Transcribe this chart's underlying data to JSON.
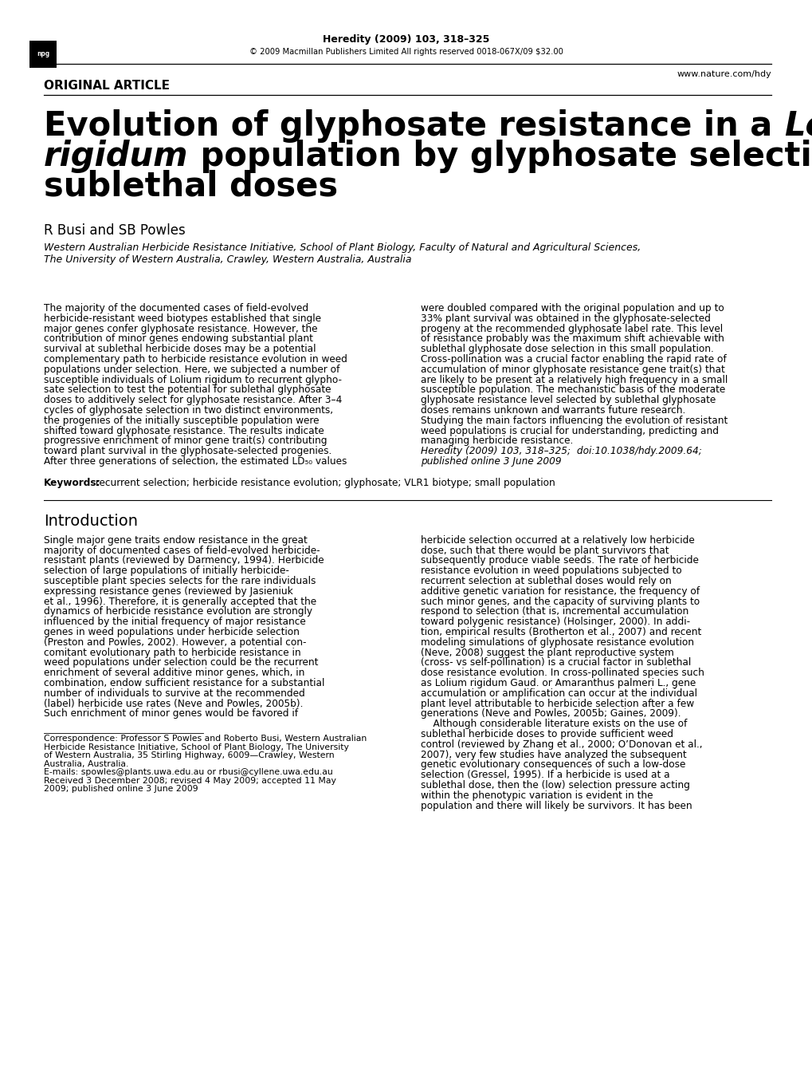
{
  "bg": "#ffffff",
  "header_journal_bold": "Heredity (2009) 103, ",
  "header_journal_normal": "318–325",
  "header_journal": "Heredity (2009) 103, 318–325",
  "header_copy": "© 2009 Macmillan Publishers Limited All rights reserved 0018-067X/09 $32.00",
  "header_url": "www.nature.com/hdy",
  "section": "ORIGINAL ARTICLE",
  "title_line1_normal": "Evolution of glyphosate resistance in a ",
  "title_line1_italic": "Lolium",
  "title_line2_italic": "rigidum",
  "title_line2_normal": " population by glyphosate selection at",
  "title_line3": "sublethal doses",
  "authors": "R Busi and SB Powles",
  "affil1": "Western Australian Herbicide Resistance Initiative, School of Plant Biology, Faculty of Natural and Agricultural Sciences,",
  "affil2": "The University of Western Australia, Crawley, Western Australia, Australia",
  "abstract_left": [
    "The majority of the documented cases of field-evolved",
    "herbicide-resistant weed biotypes established that single",
    "major genes confer glyphosate resistance. However, the",
    "contribution of minor genes endowing substantial plant",
    "survival at sublethal herbicide doses may be a potential",
    "complementary path to herbicide resistance evolution in weed",
    "populations under selection. Here, we subjected a number of",
    "susceptible individuals of Lolium rigidum to recurrent glypho-",
    "sate selection to test the potential for sublethal glyphosate",
    "doses to additively select for glyphosate resistance. After 3–4",
    "cycles of glyphosate selection in two distinct environments,",
    "the progenies of the initially susceptible population were",
    "shifted toward glyphosate resistance. The results indicate",
    "progressive enrichment of minor gene trait(s) contributing",
    "toward plant survival in the glyphosate-selected progenies.",
    "After three generations of selection, the estimated LD₅₀ values"
  ],
  "abstract_right": [
    "were doubled compared with the original population and up to",
    "33% plant survival was obtained in the glyphosate-selected",
    "progeny at the recommended glyphosate label rate. This level",
    "of resistance probably was the maximum shift achievable with",
    "sublethal glyphosate dose selection in this small population.",
    "Cross-pollination was a crucial factor enabling the rapid rate of",
    "accumulation of minor glyphosate resistance gene trait(s) that",
    "are likely to be present at a relatively high frequency in a small",
    "susceptible population. The mechanistic basis of the moderate",
    "glyphosate resistance level selected by sublethal glyphosate",
    "doses remains unknown and warrants future research.",
    "Studying the main factors influencing the evolution of resistant",
    "weed populations is crucial for understanding, predicting and",
    "managing herbicide resistance.",
    "Heredity (2009) 103, 318–325;  doi:10.1038/hdy.2009.64;",
    "published online 3 June 2009"
  ],
  "kw_bold": "Keywords:",
  "kw_text": "  recurrent selection; herbicide resistance evolution; glyphosate; VLR1 biotype; small population",
  "intro_head": "Introduction",
  "intro_left": [
    "Single major gene traits endow resistance in the great",
    "majority of documented cases of field-evolved herbicide-",
    "resistant plants (reviewed by Darmency, 1994). Herbicide",
    "selection of large populations of initially herbicide-",
    "susceptible plant species selects for the rare individuals",
    "expressing resistance genes (reviewed by Jasieniuk",
    "et al., 1996). Therefore, it is generally accepted that the",
    "dynamics of herbicide resistance evolution are strongly",
    "influenced by the initial frequency of major resistance",
    "genes in weed populations under herbicide selection",
    "(Preston and Powles, 2002). However, a potential con-",
    "comitant evolutionary path to herbicide resistance in",
    "weed populations under selection could be the recurrent",
    "enrichment of several additive minor genes, which, in",
    "combination, endow sufficient resistance for a substantial",
    "number of individuals to survive at the recommended",
    "(label) herbicide use rates (Neve and Powles, 2005b).",
    "Such enrichment of minor genes would be favored if"
  ],
  "intro_right": [
    "herbicide selection occurred at a relatively low herbicide",
    "dose, such that there would be plant survivors that",
    "subsequently produce viable seeds. The rate of herbicide",
    "resistance evolution in weed populations subjected to",
    "recurrent selection at sublethal doses would rely on",
    "additive genetic variation for resistance, the frequency of",
    "such minor genes, and the capacity of surviving plants to",
    "respond to selection (that is, incremental accumulation",
    "toward polygenic resistance) (Holsinger, 2000). In addi-",
    "tion, empirical results (Brotherton et al., 2007) and recent",
    "modeling simulations of glyphosate resistance evolution",
    "(Neve, 2008) suggest the plant reproductive system",
    "(cross- vs self-pollination) is a crucial factor in sublethal",
    "dose resistance evolution. In cross-pollinated species such",
    "as Lolium rigidum Gaud. or Amaranthus palmeri L., gene",
    "accumulation or amplification can occur at the individual",
    "plant level attributable to herbicide selection after a few",
    "generations (Neve and Powles, 2005b; Gaines, 2009).",
    "    Although considerable literature exists on the use of",
    "sublethal herbicide doses to provide sufficient weed",
    "control (reviewed by Zhang et al., 2000; O’Donovan et al.,",
    "2007), very few studies have analyzed the subsequent",
    "genetic evolutionary consequences of such a low-dose",
    "selection (Gressel, 1995). If a herbicide is used at a",
    "sublethal dose, then the (low) selection pressure acting",
    "within the phenotypic variation is evident in the",
    "population and there will likely be survivors. It has been"
  ],
  "footnote_lines": [
    "Correspondence: Professor S Powles and Roberto Busi, Western Australian",
    "Herbicide Resistance Initiative, School of Plant Biology, The University",
    "of Western Australia, 35 Stirling Highway, 6009—Crawley, Western",
    "Australia, Australia.",
    "E-mails: spowles@plants.uwa.edu.au or rbusi@cyllene.uwa.edu.au",
    "Received 3 December 2008; revised 4 May 2009; accepted 11 May",
    "2009; published online 3 June 2009"
  ]
}
